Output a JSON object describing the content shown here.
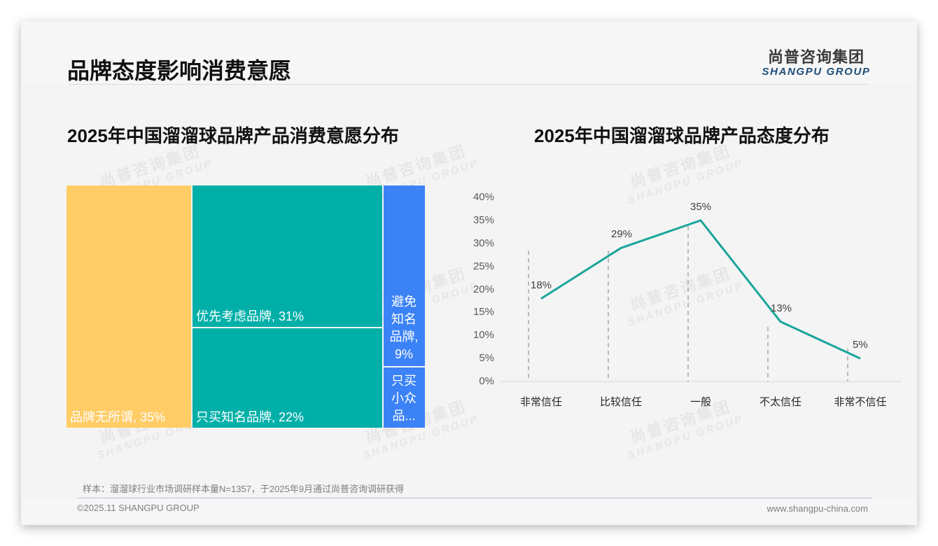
{
  "header": {
    "title": "品牌态度影响消费意愿",
    "logo_cn": "尚普咨询集团",
    "logo_en": "SHANGPU GROUP"
  },
  "watermark": {
    "cn": "尚普咨询集团",
    "en": "SHANGPU GROUP"
  },
  "colors": {
    "yellow": "#ffcc66",
    "teal": "#00b0a8",
    "blue": "#3b82f6",
    "line": "#1aa59a",
    "dash": "#a6a6a6",
    "axis": "#d9d9d9",
    "logo_en": "#1f4e79"
  },
  "chart_data": [
    {
      "type": "treemap",
      "title": "2025年中国溜溜球品牌产品消费意愿分布",
      "items": [
        {
          "label": "品牌无所谓",
          "value": 35,
          "display": "品牌无所谓, 35%",
          "color": "#ffcc66"
        },
        {
          "label": "优先考虑品牌",
          "value": 31,
          "display": "优先考虑品牌, 31%",
          "color": "#00b0a8"
        },
        {
          "label": "只买知名品牌",
          "value": 22,
          "display": "只买知名品牌, 22%",
          "color": "#00b0a8"
        },
        {
          "label": "避免知名品牌",
          "value": 9,
          "display": "避免知名品牌, 9%",
          "color": "#3b82f6"
        },
        {
          "label": "只买小众品牌",
          "value": 3,
          "display": "只买小众品...",
          "color": "#3b82f6"
        }
      ],
      "unit": "%"
    },
    {
      "type": "line",
      "title": "2025年中国溜溜球品牌产品态度分布",
      "categories": [
        "非常信任",
        "比较信任",
        "一般",
        "不太信任",
        "非常不信任"
      ],
      "values": [
        18,
        29,
        35,
        13,
        5
      ],
      "data_labels": [
        "18%",
        "29%",
        "35%",
        "13%",
        "5%"
      ],
      "yticks": [
        "0%",
        "5%",
        "10%",
        "15%",
        "20%",
        "25%",
        "30%",
        "35%",
        "40%"
      ],
      "ylim": [
        0,
        40
      ],
      "xlabel": "",
      "ylabel": "",
      "grid": false,
      "legend": "none"
    }
  ],
  "footer": {
    "note": "样本：溜溜球行业市场调研样本量N=1357，于2025年9月通过尚普咨询调研获得",
    "copyright": "©2025.11 SHANGPU GROUP",
    "website": "www.shangpu-china.com"
  }
}
